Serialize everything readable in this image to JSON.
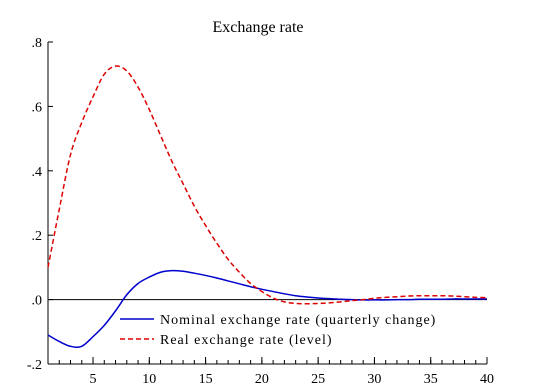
{
  "chart_data": {
    "type": "line",
    "title": "Exchange rate",
    "xlabel": "",
    "ylabel": "",
    "xlim": [
      1,
      40
    ],
    "ylim": [
      -0.2,
      0.8
    ],
    "x_ticks": [
      5,
      10,
      15,
      20,
      25,
      30,
      35,
      40
    ],
    "y_ticks": [
      {
        "value": 0.8,
        "label": ".8"
      },
      {
        "value": 0.6,
        "label": ".6"
      },
      {
        "value": 0.4,
        "label": ".4"
      },
      {
        "value": 0.2,
        "label": ".2"
      },
      {
        "value": 0.0,
        "label": ".0"
      },
      {
        "value": -0.2,
        "label": "-.2"
      }
    ],
    "zero_line": true,
    "grid": false,
    "legend_position": "bottom-right",
    "x": [
      1,
      2,
      3,
      4,
      5,
      6,
      7,
      8,
      9,
      10,
      11,
      12,
      13,
      14,
      15,
      16,
      17,
      18,
      19,
      20,
      21,
      22,
      23,
      24,
      25,
      26,
      27,
      28,
      29,
      30,
      31,
      32,
      33,
      34,
      35,
      36,
      37,
      38,
      39,
      40
    ],
    "series": [
      {
        "name": "Nominal exchange rate (quarterly change)",
        "color": "#0000cc",
        "dash": "solid",
        "values": [
          -0.11,
          -0.13,
          -0.145,
          -0.145,
          -0.115,
          -0.08,
          -0.035,
          0.015,
          0.05,
          0.07,
          0.085,
          0.09,
          0.088,
          0.082,
          0.075,
          0.067,
          0.058,
          0.049,
          0.04,
          0.032,
          0.025,
          0.018,
          0.012,
          0.008,
          0.005,
          0.003,
          0.001,
          0.0,
          -0.001,
          -0.001,
          -0.001,
          0.0,
          0.0,
          0.001,
          0.001,
          0.001,
          0.002,
          0.002,
          0.002,
          0.002
        ]
      },
      {
        "name": "Real exchange rate (level)",
        "color": "#dd0000",
        "dash": "dashed",
        "values": [
          0.1,
          0.28,
          0.45,
          0.55,
          0.63,
          0.7,
          0.725,
          0.71,
          0.66,
          0.59,
          0.51,
          0.43,
          0.36,
          0.29,
          0.23,
          0.175,
          0.125,
          0.085,
          0.05,
          0.025,
          0.005,
          -0.007,
          -0.012,
          -0.013,
          -0.012,
          -0.01,
          -0.007,
          -0.003,
          0.0,
          0.004,
          0.007,
          0.009,
          0.011,
          0.012,
          0.012,
          0.012,
          0.011,
          0.009,
          0.007,
          0.006
        ]
      }
    ]
  }
}
